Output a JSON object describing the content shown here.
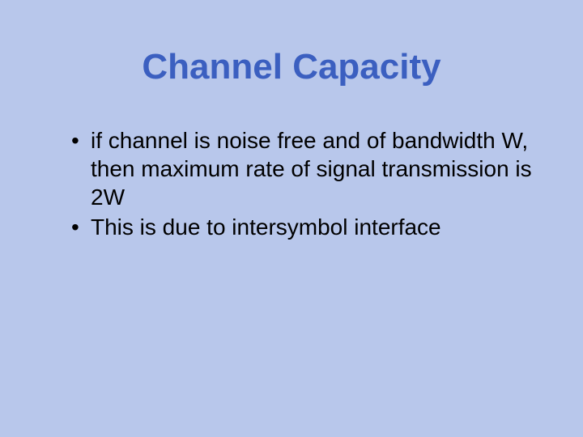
{
  "slide": {
    "title": "Channel Capacity",
    "bullets": [
      "if channel is noise free and of bandwidth W, then maximum rate of signal transmission is 2W",
      "This is due to intersymbol interface"
    ],
    "background_color": "#b8c7eb",
    "title_color": "#3b5fc0",
    "text_color": "#000000",
    "title_fontsize": 44,
    "body_fontsize": 28
  }
}
